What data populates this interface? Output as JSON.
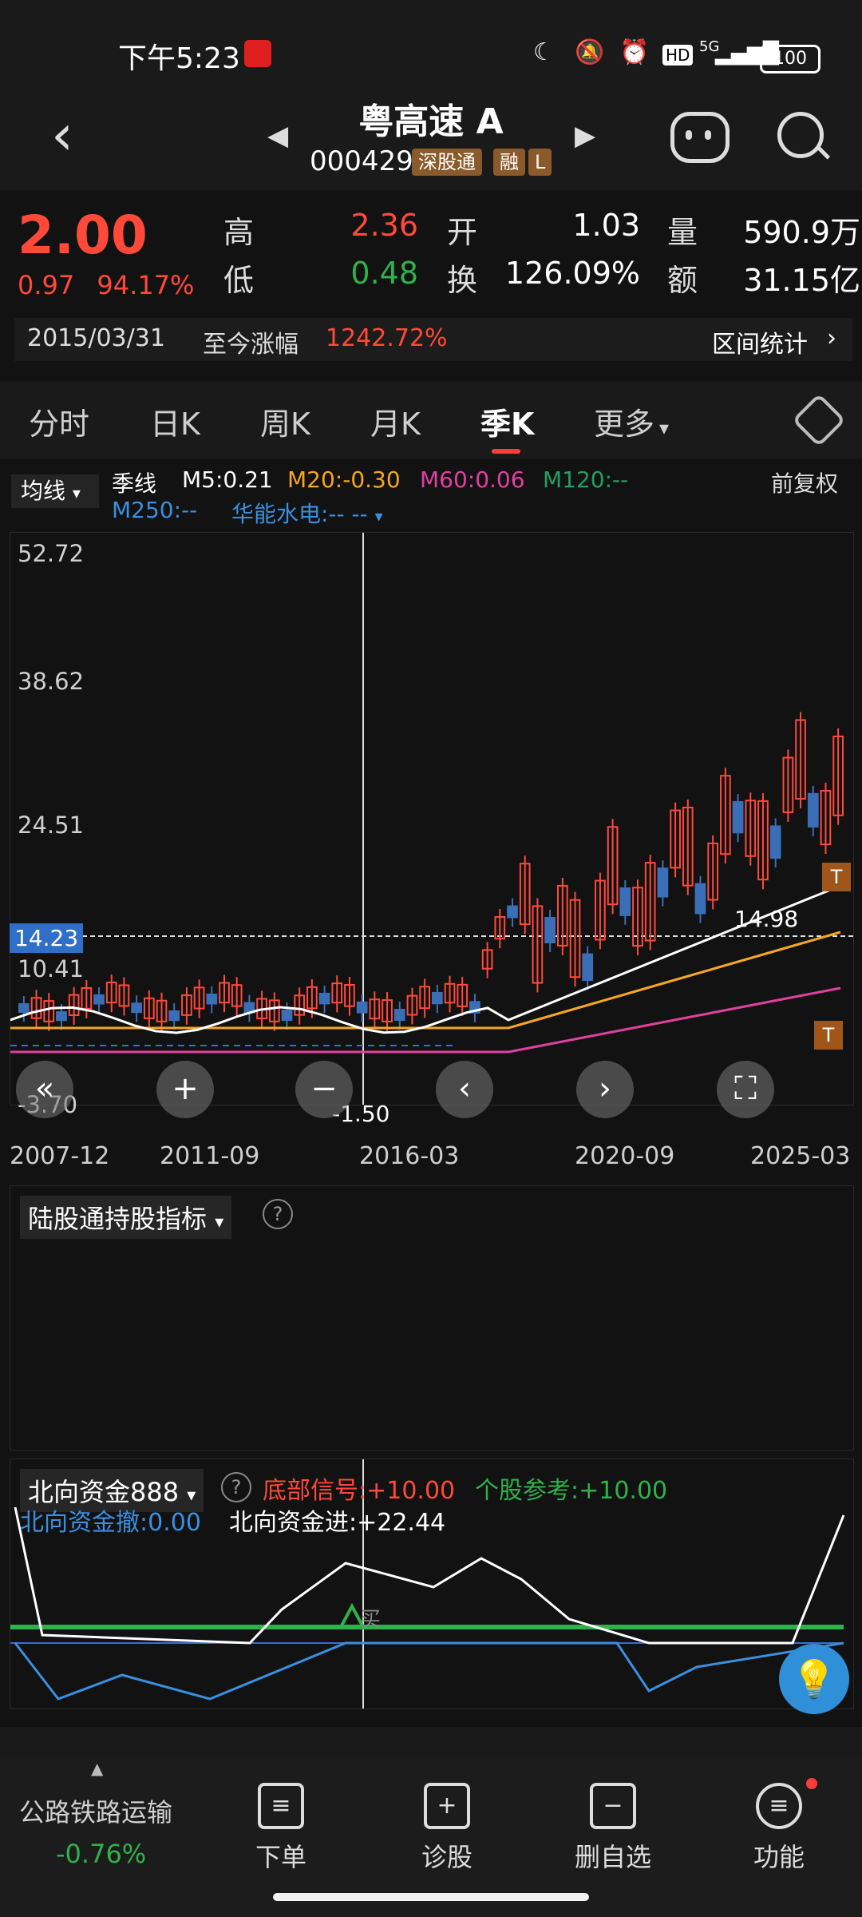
{
  "status": {
    "time": "下午5:23",
    "network": "5G",
    "battery": "100"
  },
  "header": {
    "title": "粤高速 A",
    "code": "000429",
    "tags": [
      "深股通",
      "融",
      "L"
    ]
  },
  "quote": {
    "price": "2.00",
    "change": "0.97",
    "change_pct": "94.17%",
    "high_label": "高",
    "high": "2.36",
    "low_label": "低",
    "low": "0.48",
    "open_label": "开",
    "open": "1.03",
    "turnover_label": "换",
    "turnover": "126.09%",
    "volume_label": "量",
    "volume": "590.9万",
    "amount_label": "额",
    "amount": "31.15亿",
    "range_date": "2015/03/31",
    "range_text": "至今涨幅",
    "range_pct": "1242.72%",
    "range_stat": "区间统计"
  },
  "tabs": [
    "分时",
    "日K",
    "周K",
    "月K",
    "季K",
    "更多"
  ],
  "active_tab": "季K",
  "legend": {
    "ma_select": "均线",
    "period": "季线",
    "m5": "M5:0.21",
    "m20": "M20:-0.30",
    "m60": "M60:0.06",
    "m120": "M120:--",
    "m250": "M250:--",
    "compare": "华能水电:-- --",
    "adjust": "前复权"
  },
  "chart_data": {
    "type": "candlestick",
    "y_ticks": [
      "52.72",
      "38.62",
      "24.51",
      "10.41",
      "-3.70"
    ],
    "current_price_label": "14.23",
    "x_ticks": [
      "2007-12",
      "2011-09",
      "2016-03",
      "2020-09",
      "2025-03"
    ],
    "annotations": {
      "high_arrow": "14.98",
      "low_arrow": "-1.50",
      "t_marker": "T"
    },
    "colors": {
      "up": "#ff4a3a",
      "down": "#3a6fb8",
      "m5": "#ffffff",
      "m20": "#f5a623",
      "m60": "#e040a0",
      "m250": "#3b8fe0"
    }
  },
  "indicator1": {
    "title": "陆股通持股指标",
    "help": "?"
  },
  "indicator2": {
    "title": "北向资金888",
    "help": "?",
    "bottom_signal": "底部信号:+10.00",
    "stock_ref": "个股参考:+10.00",
    "north_out": "北向资金撤:0.00",
    "north_in": "北向资金进:+22.44",
    "buy_label": "买"
  },
  "sector": {
    "name": "公路铁路运输",
    "change": "-0.76%"
  },
  "nav": [
    "下单",
    "诊股",
    "删自选",
    "功能"
  ]
}
